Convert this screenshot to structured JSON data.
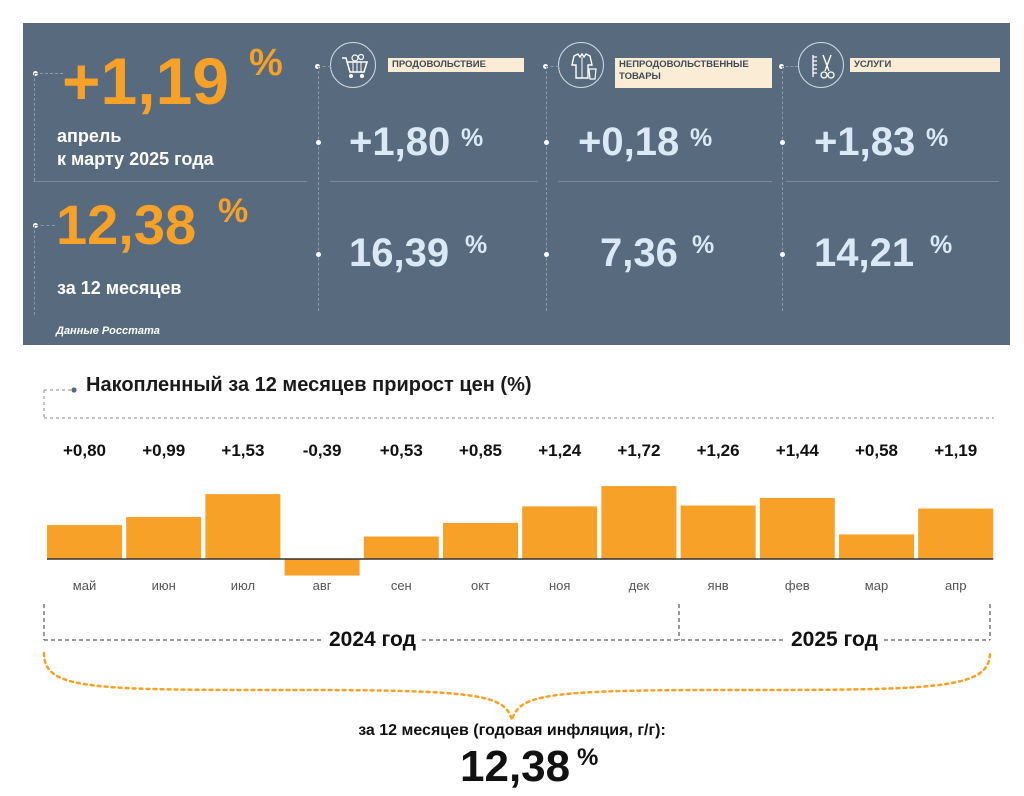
{
  "summary": {
    "monthly_value": "+1,19",
    "monthly_pct": "%",
    "monthly_caption_line1": "апрель",
    "monthly_caption_line2": "к марту 2025 года",
    "annual_value": "12,38",
    "annual_pct": "%",
    "annual_caption": "за 12 месяцев",
    "source": "Данные Росстата"
  },
  "categories": [
    {
      "label": "ПРОДОВОЛЬСТВИЕ",
      "icon": "shopping-cart-icon",
      "monthly": "+1,80",
      "annual": "16,39",
      "pct": "%"
    },
    {
      "label": "НЕПРОДОВОЛЬСТВЕННЫЕ ТОВАРЫ",
      "icon": "clothing-icon",
      "monthly": "+0,18",
      "annual": "7,36",
      "pct": "%"
    },
    {
      "label": "УСЛУГИ",
      "icon": "scissors-comb-icon",
      "monthly": "+1,83",
      "annual": "14,21",
      "pct": "%"
    }
  ],
  "colors": {
    "panel": "#586a7e",
    "accent": "#f7a128",
    "value_text": "#dbe9f6"
  },
  "chart_title": "Накопленный за 12 месяцев прирост цен (%)",
  "chart_data": {
    "type": "bar",
    "title": "Накопленный за 12 месяцев прирост цен (%)",
    "categories": [
      "май",
      "июн",
      "июл",
      "авг",
      "сен",
      "окт",
      "ноя",
      "дек",
      "янв",
      "фев",
      "мар",
      "апр"
    ],
    "values": [
      0.8,
      0.99,
      1.53,
      -0.39,
      0.53,
      0.85,
      1.24,
      1.72,
      1.26,
      1.44,
      0.58,
      1.19
    ],
    "value_labels": [
      "+0,80",
      "+0,99",
      "+1,53",
      "-0,39",
      "+0,53",
      "+0,85",
      "+1,24",
      "+1,72",
      "+1,26",
      "+1,44",
      "+0,58",
      "+1,19"
    ],
    "bar_color": "#f7a128",
    "grid": false,
    "year_groups": [
      {
        "label": "2024 год",
        "months": 8
      },
      {
        "label": "2025 год",
        "months": 4
      }
    ]
  },
  "annual_summary": {
    "caption": "за 12 месяцев (годовая инфляция, г/г):",
    "value": "12,38",
    "pct": "%"
  }
}
